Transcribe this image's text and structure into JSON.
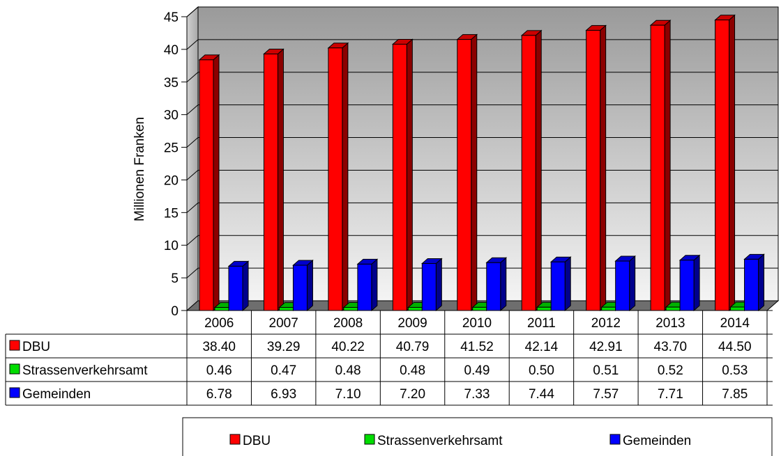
{
  "chart_data": {
    "type": "bar",
    "title": "",
    "xlabel": "",
    "ylabel": "Millionen Franken",
    "ylim": [
      0,
      45
    ],
    "yticks": [
      0,
      5,
      10,
      15,
      20,
      25,
      30,
      35,
      40,
      45
    ],
    "categories": [
      "2006",
      "2007",
      "2008",
      "2009",
      "2010",
      "2011",
      "2012",
      "2013",
      "2014"
    ],
    "series": [
      {
        "name": "DBU",
        "color": "#ff0000",
        "values": [
          38.4,
          39.29,
          40.22,
          40.79,
          41.52,
          42.14,
          42.91,
          43.7,
          44.5
        ],
        "value_labels": [
          "38.40",
          "39.29",
          "40.22",
          "40.79",
          "41.52",
          "42.14",
          "42.91",
          "43.70",
          "44.50"
        ]
      },
      {
        "name": "Strassenverkehrsamt",
        "color": "#00dd00",
        "values": [
          0.46,
          0.47,
          0.48,
          0.48,
          0.49,
          0.5,
          0.51,
          0.52,
          0.53
        ],
        "value_labels": [
          "0.46",
          "0.47",
          "0.48",
          "0.48",
          "0.49",
          "0.50",
          "0.51",
          "0.52",
          "0.53"
        ]
      },
      {
        "name": "Gemeinden",
        "color": "#0000ff",
        "values": [
          6.78,
          6.93,
          7.1,
          7.2,
          7.33,
          7.44,
          7.57,
          7.71,
          7.85
        ],
        "value_labels": [
          "6.78",
          "6.93",
          "7.10",
          "7.20",
          "7.33",
          "7.44",
          "7.57",
          "7.71",
          "7.85"
        ]
      }
    ],
    "grid": true,
    "style": "3d-column",
    "data_table": true,
    "legend": "bottom"
  }
}
